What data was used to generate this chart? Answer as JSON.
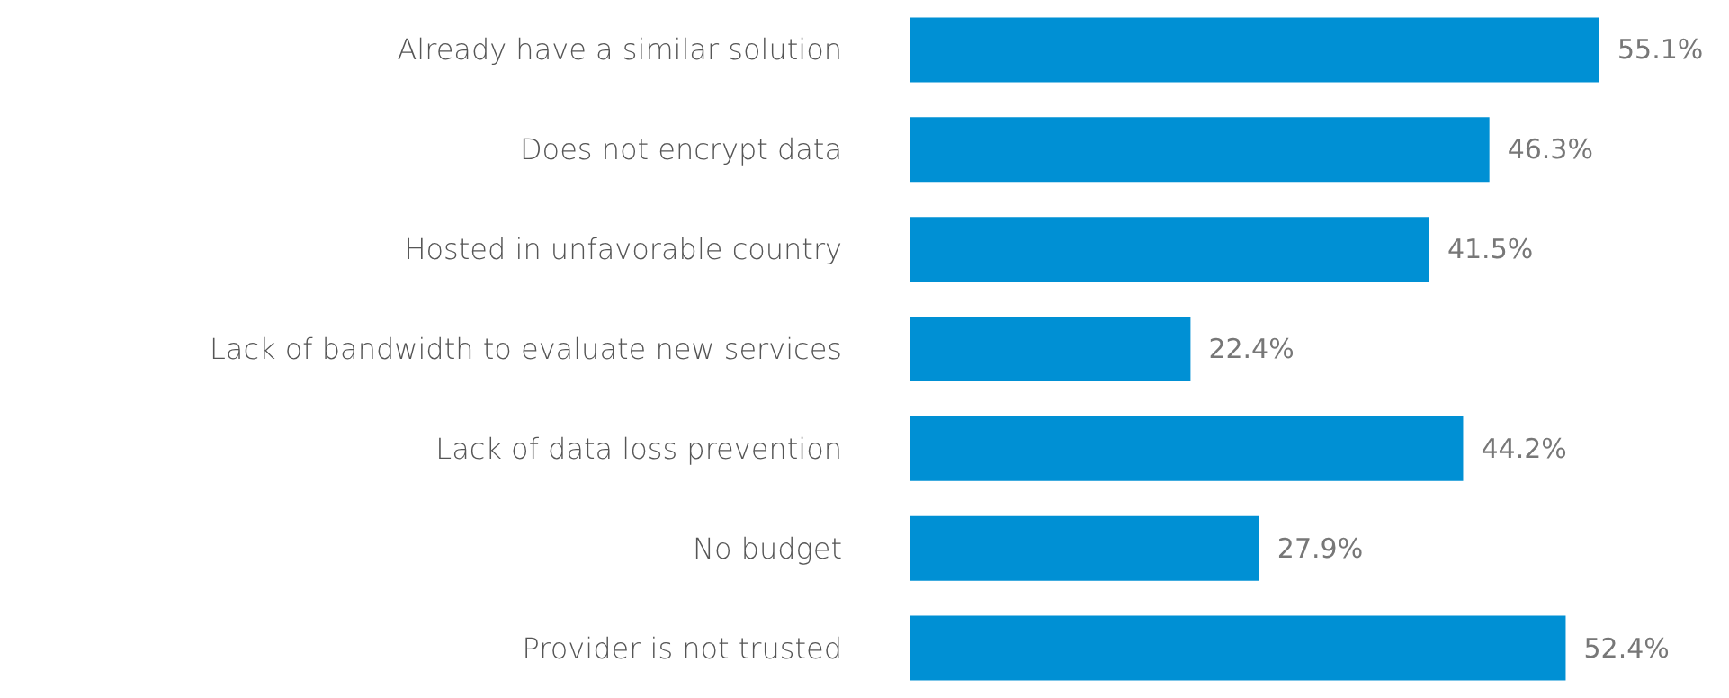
{
  "chart_data": {
    "type": "bar",
    "orientation": "horizontal",
    "categories": [
      "Already have a similar solution",
      "Does not encrypt data",
      "Hosted in unfavorable country",
      "Lack of bandwidth to evaluate new services",
      "Lack of data loss prevention",
      "No budget",
      "Provider is not trusted"
    ],
    "values": [
      55.1,
      46.3,
      41.5,
      22.4,
      44.2,
      27.9,
      52.4
    ],
    "value_labels": [
      "55.1%",
      "46.3%",
      "41.5%",
      "22.4%",
      "44.2%",
      "27.9%",
      "52.4%"
    ],
    "color": "#0090d4"
  }
}
